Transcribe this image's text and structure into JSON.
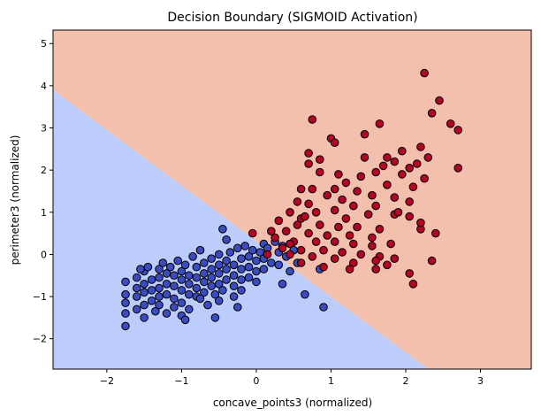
{
  "chart_data": {
    "type": "scatter",
    "title": "Decision Boundary (SIGMOID Activation)",
    "xlabel": "concave_points3 (normalized)",
    "ylabel": "perimeter3 (normalized)",
    "xlim": [
      -2.72,
      3.68
    ],
    "ylim": [
      -2.72,
      5.32
    ],
    "xticks": [
      -2,
      -1,
      0,
      1,
      2,
      3
    ],
    "yticks": [
      -2,
      -1,
      0,
      1,
      2,
      3,
      4,
      5
    ],
    "grid": false,
    "decision_boundary": {
      "points": [
        [
          -2.72,
          3.9
        ],
        [
          2.3,
          -2.72
        ]
      ],
      "upper_region_color": "#f4c0ae",
      "lower_region_color": "#bccdfb"
    },
    "series": [
      {
        "color": "#3b4cc0",
        "points": [
          [
            -1.75,
            -0.65
          ],
          [
            -1.75,
            -0.95
          ],
          [
            -1.75,
            -1.15
          ],
          [
            -1.75,
            -1.4
          ],
          [
            -1.75,
            -1.7
          ],
          [
            -1.6,
            -0.55
          ],
          [
            -1.6,
            -0.8
          ],
          [
            -1.6,
            -1.0
          ],
          [
            -1.6,
            -1.3
          ],
          [
            -1.5,
            -0.4
          ],
          [
            -1.5,
            -0.7
          ],
          [
            -1.5,
            -0.9
          ],
          [
            -1.5,
            -1.2
          ],
          [
            -1.5,
            -1.5
          ],
          [
            -1.45,
            -0.3
          ],
          [
            -1.4,
            -0.6
          ],
          [
            -1.4,
            -0.85
          ],
          [
            -1.4,
            -1.1
          ],
          [
            -1.35,
            -1.35
          ],
          [
            -1.3,
            -0.35
          ],
          [
            -1.3,
            -0.55
          ],
          [
            -1.3,
            -0.8
          ],
          [
            -1.3,
            -1.0
          ],
          [
            -1.3,
            -1.2
          ],
          [
            -1.25,
            -0.2
          ],
          [
            -1.2,
            -0.45
          ],
          [
            -1.2,
            -0.7
          ],
          [
            -1.2,
            -0.95
          ],
          [
            -1.2,
            -1.4
          ],
          [
            -1.15,
            -0.3
          ],
          [
            -1.1,
            -0.5
          ],
          [
            -1.1,
            -0.75
          ],
          [
            -1.1,
            -1.05
          ],
          [
            -1.1,
            -1.25
          ],
          [
            -1.05,
            -0.15
          ],
          [
            -1.0,
            -0.4
          ],
          [
            -1.0,
            -0.6
          ],
          [
            -1.0,
            -0.85
          ],
          [
            -1.0,
            -1.15
          ],
          [
            -0.95,
            -0.25
          ],
          [
            -0.9,
            -0.5
          ],
          [
            -0.9,
            -0.7
          ],
          [
            -0.9,
            -0.95
          ],
          [
            -0.9,
            -1.3
          ],
          [
            -0.85,
            -0.05
          ],
          [
            -0.8,
            -0.3
          ],
          [
            -0.8,
            -0.55
          ],
          [
            -0.8,
            -0.8
          ],
          [
            -0.8,
            -1.0
          ],
          [
            -0.75,
            0.1
          ],
          [
            -0.7,
            -0.2
          ],
          [
            -0.7,
            -0.45
          ],
          [
            -0.7,
            -0.65
          ],
          [
            -0.7,
            -0.9
          ],
          [
            -0.65,
            -1.2
          ],
          [
            -0.6,
            -0.1
          ],
          [
            -0.6,
            -0.35
          ],
          [
            -0.6,
            -0.55
          ],
          [
            -0.6,
            -0.75
          ],
          [
            -0.55,
            -0.95
          ],
          [
            -0.5,
            0.0
          ],
          [
            -0.5,
            -0.25
          ],
          [
            -0.5,
            -0.45
          ],
          [
            -0.5,
            -0.7
          ],
          [
            -0.5,
            -1.1
          ],
          [
            -0.45,
            -0.85
          ],
          [
            -0.4,
            -0.15
          ],
          [
            -0.4,
            -0.35
          ],
          [
            -0.4,
            -0.6
          ],
          [
            -0.35,
            0.05
          ],
          [
            -0.3,
            -0.25
          ],
          [
            -0.3,
            -0.5
          ],
          [
            -0.3,
            -0.75
          ],
          [
            -0.3,
            -1.0
          ],
          [
            -0.25,
            0.15
          ],
          [
            -0.2,
            -0.1
          ],
          [
            -0.2,
            -0.35
          ],
          [
            -0.2,
            -0.6
          ],
          [
            -0.2,
            -0.85
          ],
          [
            -0.15,
            0.2
          ],
          [
            -0.1,
            -0.05
          ],
          [
            -0.1,
            -0.3
          ],
          [
            -0.1,
            -0.55
          ],
          [
            -0.05,
            0.1
          ],
          [
            0.0,
            -0.15
          ],
          [
            0.0,
            -0.4
          ],
          [
            0.0,
            -0.65
          ],
          [
            0.05,
            0.05
          ],
          [
            0.1,
            0.25
          ],
          [
            0.1,
            -0.1
          ],
          [
            0.1,
            -0.35
          ],
          [
            0.15,
            0.15
          ],
          [
            0.2,
            -0.2
          ],
          [
            0.25,
            0.3
          ],
          [
            0.3,
            0.05
          ],
          [
            0.3,
            -0.25
          ],
          [
            0.35,
            0.2
          ],
          [
            0.4,
            -0.05
          ],
          [
            0.45,
            -0.4
          ],
          [
            0.5,
            0.1
          ],
          [
            0.55,
            -0.2
          ],
          [
            -0.45,
            0.6
          ],
          [
            -0.4,
            0.35
          ],
          [
            -0.75,
            -1.05
          ],
          [
            0.35,
            -0.7
          ],
          [
            0.65,
            -0.95
          ],
          [
            0.9,
            -1.25
          ],
          [
            0.85,
            -0.35
          ],
          [
            -1.55,
            -0.35
          ],
          [
            -1.0,
            -1.45
          ],
          [
            -0.55,
            -1.5
          ],
          [
            -0.95,
            -1.55
          ],
          [
            -0.25,
            -1.25
          ]
        ]
      },
      {
        "color": "#b40426",
        "points": [
          [
            2.25,
            4.3
          ],
          [
            2.45,
            3.65
          ],
          [
            2.35,
            3.35
          ],
          [
            0.75,
            3.2
          ],
          [
            1.65,
            3.1
          ],
          [
            2.6,
            3.1
          ],
          [
            2.7,
            2.95
          ],
          [
            1.45,
            2.85
          ],
          [
            1.0,
            2.75
          ],
          [
            1.05,
            2.65
          ],
          [
            2.2,
            2.55
          ],
          [
            1.95,
            2.45
          ],
          [
            0.7,
            2.4
          ],
          [
            1.75,
            2.3
          ],
          [
            2.3,
            2.3
          ],
          [
            2.15,
            2.15
          ],
          [
            1.85,
            2.2
          ],
          [
            0.7,
            2.15
          ],
          [
            1.7,
            2.1
          ],
          [
            2.05,
            2.05
          ],
          [
            2.7,
            2.05
          ],
          [
            0.85,
            1.95
          ],
          [
            1.6,
            1.95
          ],
          [
            1.95,
            1.9
          ],
          [
            2.25,
            1.8
          ],
          [
            1.4,
            1.85
          ],
          [
            1.1,
            1.9
          ],
          [
            0.6,
            1.55
          ],
          [
            1.2,
            1.7
          ],
          [
            1.75,
            1.65
          ],
          [
            2.1,
            1.6
          ],
          [
            0.75,
            1.55
          ],
          [
            1.35,
            1.5
          ],
          [
            1.55,
            1.4
          ],
          [
            0.95,
            1.4
          ],
          [
            1.85,
            1.35
          ],
          [
            2.05,
            1.25
          ],
          [
            1.15,
            1.3
          ],
          [
            0.55,
            1.25
          ],
          [
            0.7,
            1.2
          ],
          [
            1.3,
            1.15
          ],
          [
            1.6,
            1.15
          ],
          [
            1.05,
            1.05
          ],
          [
            0.8,
            1.0
          ],
          [
            1.5,
            0.95
          ],
          [
            1.85,
            0.95
          ],
          [
            2.05,
            0.9
          ],
          [
            0.45,
            1.0
          ],
          [
            0.6,
            0.85
          ],
          [
            1.2,
            0.85
          ],
          [
            0.3,
            0.8
          ],
          [
            0.55,
            0.7
          ],
          [
            0.85,
            0.7
          ],
          [
            1.1,
            0.65
          ],
          [
            1.35,
            0.65
          ],
          [
            1.65,
            0.6
          ],
          [
            0.4,
            0.55
          ],
          [
            0.7,
            0.5
          ],
          [
            0.95,
            0.45
          ],
          [
            1.25,
            0.45
          ],
          [
            1.55,
            0.4
          ],
          [
            0.25,
            0.4
          ],
          [
            0.5,
            0.3
          ],
          [
            0.8,
            0.3
          ],
          [
            1.05,
            0.3
          ],
          [
            1.3,
            0.25
          ],
          [
            1.55,
            0.2
          ],
          [
            1.8,
            0.25
          ],
          [
            0.35,
            0.15
          ],
          [
            0.6,
            0.1
          ],
          [
            0.9,
            0.1
          ],
          [
            1.15,
            0.05
          ],
          [
            1.4,
            0.0
          ],
          [
            1.65,
            -0.05
          ],
          [
            0.2,
            0.55
          ],
          [
            -0.05,
            0.5
          ],
          [
            0.15,
            0.0
          ],
          [
            0.45,
            0.0
          ],
          [
            0.75,
            -0.05
          ],
          [
            1.05,
            -0.1
          ],
          [
            1.3,
            -0.2
          ],
          [
            1.6,
            -0.15
          ],
          [
            1.85,
            -0.1
          ],
          [
            0.6,
            -0.2
          ],
          [
            0.9,
            -0.3
          ],
          [
            1.25,
            -0.35
          ],
          [
            1.6,
            -0.35
          ],
          [
            2.05,
            -0.45
          ],
          [
            1.75,
            -0.25
          ],
          [
            2.1,
            -0.7
          ],
          [
            0.65,
            0.9
          ],
          [
            1.05,
            1.55
          ],
          [
            1.45,
            2.3
          ],
          [
            0.85,
            2.25
          ],
          [
            1.9,
            1.0
          ],
          [
            2.2,
            0.6
          ],
          [
            2.4,
            0.5
          ],
          [
            2.35,
            -0.15
          ],
          [
            2.2,
            0.75
          ],
          [
            0.45,
            0.25
          ]
        ]
      }
    ]
  }
}
